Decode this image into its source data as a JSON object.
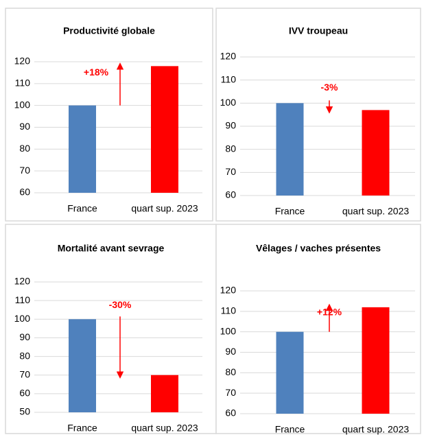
{
  "chart_data": [
    {
      "type": "bar",
      "title": "Productivité globale",
      "categories": [
        "France",
        "quart sup. 2023"
      ],
      "values": [
        100,
        118
      ],
      "colors": [
        "#4f81bd",
        "#ff0000"
      ],
      "ylim": [
        60,
        120
      ],
      "yticks": [
        60,
        70,
        80,
        90,
        100,
        110,
        120
      ],
      "grid": true,
      "annotation": "+18%"
    },
    {
      "type": "bar",
      "title": "IVV troupeau",
      "categories": [
        "France",
        "quart sup. 2023"
      ],
      "values": [
        100,
        97
      ],
      "colors": [
        "#4f81bd",
        "#ff0000"
      ],
      "ylim": [
        60,
        120
      ],
      "yticks": [
        60,
        70,
        80,
        90,
        100,
        110,
        120
      ],
      "grid": true,
      "annotation": "-3%"
    },
    {
      "type": "bar",
      "title": "Mortalité avant sevrage",
      "categories": [
        "France",
        "quart sup. 2023"
      ],
      "values": [
        100,
        70
      ],
      "colors": [
        "#4f81bd",
        "#ff0000"
      ],
      "ylim": [
        50,
        120
      ],
      "yticks": [
        50,
        60,
        70,
        80,
        90,
        100,
        110,
        120
      ],
      "grid": true,
      "annotation": "-30%"
    },
    {
      "type": "bar",
      "title": "Vêlages / vaches présentes",
      "categories": [
        "France",
        "quart sup. 2023"
      ],
      "values": [
        100,
        112
      ],
      "colors": [
        "#4f81bd",
        "#ff0000"
      ],
      "ylim": [
        60,
        120
      ],
      "yticks": [
        60,
        70,
        80,
        90,
        100,
        110,
        120
      ],
      "grid": true,
      "annotation": "+12%"
    }
  ]
}
